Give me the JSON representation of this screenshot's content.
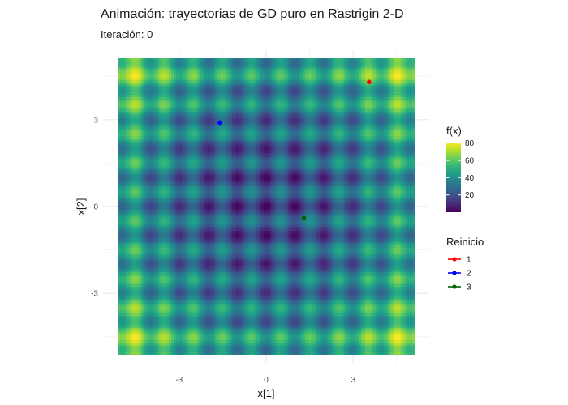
{
  "chart_data": {
    "type": "heatmap",
    "title": "Animación: trayectorias de GD puro en Rastrigin 2-D",
    "subtitle": "Iteración: 0",
    "xlabel": "x[1]",
    "ylabel": "x[2]",
    "xlim": [
      -5.12,
      5.12
    ],
    "ylim": [
      -5.12,
      5.12
    ],
    "x_ticks": [
      {
        "value": -3,
        "label": "-3"
      },
      {
        "value": 0,
        "label": "0"
      },
      {
        "value": 3,
        "label": "3"
      }
    ],
    "y_ticks": [
      {
        "value": -3,
        "label": "-3"
      },
      {
        "value": 0,
        "label": "0"
      },
      {
        "value": 3,
        "label": "3"
      }
    ],
    "grid": true,
    "function": "Rastrigin",
    "colorbar": {
      "title": "f(x)",
      "range": [
        0,
        80.7
      ],
      "ticks": [
        {
          "value": 20,
          "label": "20"
        },
        {
          "value": 40,
          "label": "40"
        },
        {
          "value": 60,
          "label": "60"
        },
        {
          "value": 80,
          "label": "80"
        }
      ],
      "palette": [
        "#440154",
        "#482878",
        "#3e4a89",
        "#31688e",
        "#26828e",
        "#1f9e89",
        "#35b779",
        "#6ece58",
        "#b5de2b",
        "#fde725"
      ]
    },
    "points_legend": {
      "title": "Reinicio",
      "position": "right"
    },
    "series": [
      {
        "name": "1",
        "color": "#ff0000",
        "x": 3.55,
        "y": 4.3
      },
      {
        "name": "2",
        "color": "#0000ff",
        "x": -1.6,
        "y": 2.9
      },
      {
        "name": "3",
        "color": "#006400",
        "x": 1.3,
        "y": -0.4
      }
    ]
  }
}
